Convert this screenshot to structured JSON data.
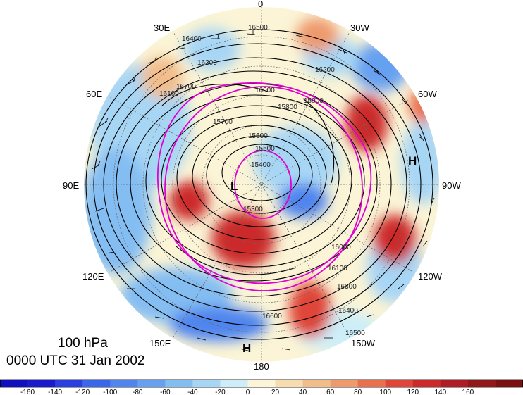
{
  "caption": {
    "level": "100 hPa",
    "time": "0000 UTC 31 Jan 2002"
  },
  "longitude_labels": {
    "lon_0": "0",
    "lon_30w": "30W",
    "lon_60w": "60W",
    "lon_90w": "90W",
    "lon_120w": "120W",
    "lon_150w": "150W",
    "lon_180": "180",
    "lon_150e": "150E",
    "lon_120e": "120E",
    "lon_90e": "90E",
    "lon_60e": "60E",
    "lon_30e": "30E"
  },
  "pressure_centers": {
    "low": "L",
    "high_bottom": "H",
    "high_right": "H"
  },
  "contour_labels": [
    "16500",
    "16400",
    "16300",
    "16200",
    "16100",
    "16000",
    "15900",
    "15800",
    "15700",
    "15600",
    "15500",
    "15400",
    "15300",
    "16100",
    "16000",
    "16300",
    "16400",
    "16500",
    "16600",
    "16700"
  ],
  "colorbar": {
    "ticks": [
      "-160",
      "-140",
      "-120",
      "-100",
      "-80",
      "-60",
      "-40",
      "-20",
      "0",
      "20",
      "40",
      "60",
      "80",
      "100",
      "120",
      "140",
      "160"
    ],
    "colors": [
      "#1a1acc",
      "#2b3fe0",
      "#3a66ea",
      "#4f85ee",
      "#66a0f0",
      "#84bdf2",
      "#a7d6f5",
      "#cdeef8",
      "#fbf4d6",
      "#f6dcae",
      "#f2bd8a",
      "#ee9a6d",
      "#e8704f",
      "#df4538",
      "#cc2a2a",
      "#b01c24",
      "#901818"
    ]
  },
  "colors": {
    "thickness_line": "#e000d0",
    "contour": "#000000"
  }
}
